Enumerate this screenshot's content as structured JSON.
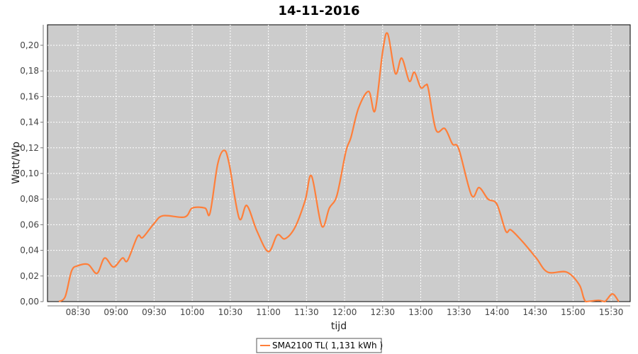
{
  "chart_data": {
    "type": "line",
    "title": "14-11-2016",
    "xlabel": "tijd",
    "ylabel": "Watt/Wp",
    "xlim": [
      "08:06",
      "15:45"
    ],
    "ylim": [
      0,
      0.216
    ],
    "grid": true,
    "legend_placement": "bottom",
    "x_ticks": [
      "08:30",
      "09:00",
      "09:30",
      "10:00",
      "10:30",
      "11:00",
      "11:30",
      "12:00",
      "12:30",
      "13:00",
      "13:30",
      "14:00",
      "14:30",
      "15:00",
      "15:30"
    ],
    "y_ticks": [
      "0,00",
      "0,02",
      "0,04",
      "0,06",
      "0,08",
      "0,10",
      "0,12",
      "0,14",
      "0,16",
      "0,18",
      "0,20"
    ],
    "series": [
      {
        "name": "SMA2100 TL( 1,131 kWh )",
        "color": "#ff7f3a",
        "x": [
          "08:15",
          "08:20",
          "08:25",
          "08:30",
          "08:38",
          "08:45",
          "08:51",
          "08:58",
          "09:05",
          "09:09",
          "09:17",
          "09:21",
          "09:30",
          "09:37",
          "09:54",
          "10:00",
          "10:10",
          "10:14",
          "10:20",
          "10:25",
          "10:29",
          "10:37",
          "10:43",
          "10:51",
          "11:00",
          "11:07",
          "11:13",
          "11:21",
          "11:29",
          "11:34",
          "11:42",
          "11:48",
          "11:54",
          "12:01",
          "12:05",
          "12:11",
          "12:19",
          "12:24",
          "12:30",
          "12:34",
          "12:40",
          "12:45",
          "12:51",
          "12:55",
          "13:00",
          "13:04",
          "13:06",
          "13:12",
          "13:19",
          "13:25",
          "13:30",
          "13:40",
          "13:46",
          "13:53",
          "14:00",
          "14:07",
          "14:11",
          "14:20",
          "14:31",
          "14:40",
          "14:55",
          "15:05",
          "15:10",
          "15:20",
          "15:25",
          "15:31",
          "15:36"
        ],
        "values": [
          0.0,
          0.004,
          0.024,
          0.028,
          0.029,
          0.022,
          0.034,
          0.027,
          0.034,
          0.032,
          0.051,
          0.05,
          0.061,
          0.067,
          0.066,
          0.073,
          0.073,
          0.069,
          0.107,
          0.118,
          0.108,
          0.065,
          0.075,
          0.055,
          0.039,
          0.052,
          0.049,
          0.058,
          0.079,
          0.098,
          0.059,
          0.073,
          0.083,
          0.117,
          0.128,
          0.151,
          0.164,
          0.149,
          0.195,
          0.209,
          0.178,
          0.19,
          0.172,
          0.179,
          0.167,
          0.169,
          0.166,
          0.134,
          0.135,
          0.123,
          0.119,
          0.083,
          0.089,
          0.08,
          0.076,
          0.055,
          0.056,
          0.047,
          0.034,
          0.023,
          0.023,
          0.013,
          0.0,
          0.001,
          0.0,
          0.006,
          0.0
        ]
      }
    ]
  }
}
